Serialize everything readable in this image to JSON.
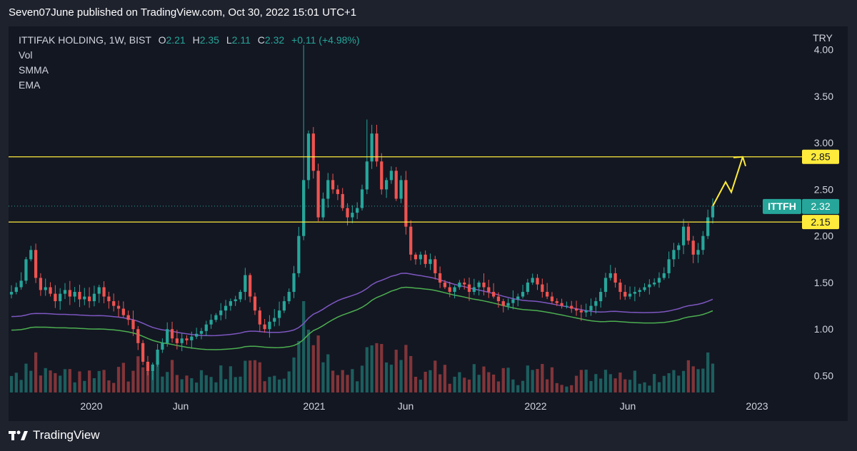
{
  "header": {
    "publisher": "Seven07June published on TradingView.com, Oct 30, 2022 15:01 UTC+1"
  },
  "legend": {
    "symbol": "ITTIFAK HOLDING, 1W, BIST",
    "open_label": "O",
    "open": "2.21",
    "high_label": "H",
    "high": "2.35",
    "low_label": "L",
    "low": "2.11",
    "close_label": "C",
    "close": "2.32",
    "change": "+0.11 (+4.98%)",
    "indicators": [
      "Vol",
      "SMMA",
      "EMA"
    ]
  },
  "footer": {
    "brand": "TradingView"
  },
  "colors": {
    "up": "#26a69a",
    "down": "#ef5350",
    "smma": "#7e57c2",
    "ema": "#4caf50",
    "level": "#ffeb3b",
    "background": "#131722"
  },
  "chart_data": {
    "type": "candlestick",
    "currency": "TRY",
    "ticker": "ITTFH",
    "last_price": 2.32,
    "x_ticks": [
      "2020",
      "Jun",
      "2021",
      "Jun",
      "2022",
      "Jun",
      "2023"
    ],
    "y_ticks": [
      4.0,
      3.5,
      3.0,
      2.5,
      2.0,
      1.5,
      1.0,
      0.5
    ],
    "y_tick_labels": [
      "4.00",
      "3.50",
      "3.00",
      "2.50",
      "2.00",
      "1.50",
      "1.00",
      "0.50"
    ],
    "ylim": [
      0.32,
      4.25
    ],
    "levels": [
      {
        "value": 2.85,
        "label": "2.85"
      },
      {
        "value": 2.15,
        "label": "2.15"
      }
    ],
    "close_series": [
      1.4,
      1.45,
      1.52,
      1.75,
      1.85,
      1.55,
      1.42,
      1.45,
      1.38,
      1.3,
      1.38,
      1.42,
      1.35,
      1.4,
      1.32,
      1.35,
      1.3,
      1.38,
      1.45,
      1.35,
      1.3,
      1.25,
      1.22,
      1.15,
      1.1,
      1.0,
      0.85,
      0.65,
      0.55,
      0.62,
      0.78,
      0.85,
      1.0,
      0.9,
      0.85,
      0.9,
      0.88,
      0.92,
      0.95,
      0.98,
      1.05,
      1.1,
      1.15,
      1.2,
      1.25,
      1.3,
      1.32,
      1.4,
      1.58,
      1.35,
      1.2,
      1.05,
      1.0,
      1.08,
      1.12,
      1.2,
      1.3,
      1.4,
      1.6,
      2.0,
      2.6,
      3.1,
      2.7,
      2.2,
      2.4,
      2.6,
      2.5,
      2.45,
      2.3,
      2.2,
      2.25,
      2.3,
      2.5,
      2.8,
      3.1,
      2.8,
      2.5,
      2.6,
      2.7,
      2.4,
      2.6,
      2.1,
      1.8,
      1.75,
      1.8,
      1.7,
      1.75,
      1.6,
      1.5,
      1.45,
      1.4,
      1.45,
      1.5,
      1.48,
      1.4,
      1.45,
      1.5,
      1.45,
      1.4,
      1.35,
      1.3,
      1.25,
      1.28,
      1.32,
      1.35,
      1.4,
      1.5,
      1.55,
      1.48,
      1.4,
      1.35,
      1.3,
      1.28,
      1.25,
      1.25,
      1.22,
      1.2,
      1.18,
      1.2,
      1.25,
      1.3,
      1.4,
      1.55,
      1.6,
      1.5,
      1.4,
      1.35,
      1.38,
      1.4,
      1.42,
      1.45,
      1.48,
      1.5,
      1.55,
      1.6,
      1.75,
      1.85,
      1.9,
      2.1,
      1.95,
      1.8,
      1.85,
      2.0,
      2.2,
      2.32
    ],
    "smma_range": [
      0.93,
      1.6
    ],
    "ema_range": [
      0.78,
      1.45
    ],
    "volume_note": "volume histogram at bottom, peak week late 2020",
    "projection": [
      2.32,
      2.58,
      2.47,
      2.85
    ]
  }
}
